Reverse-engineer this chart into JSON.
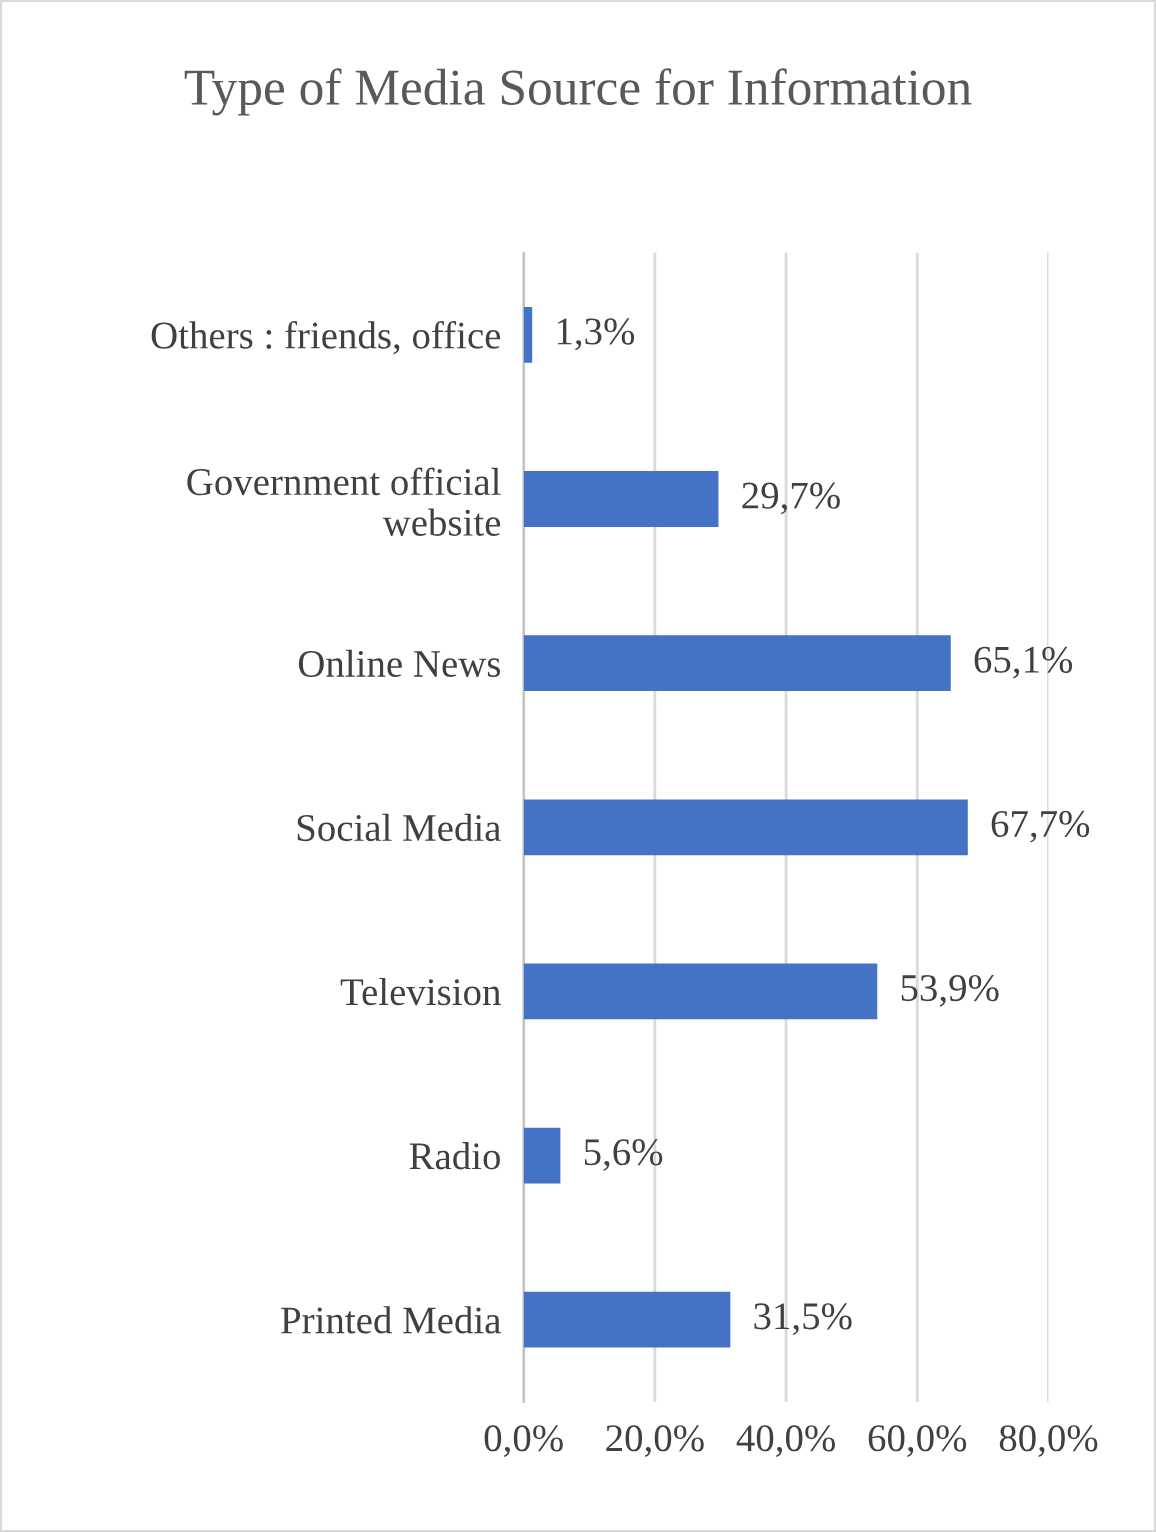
{
  "chart_data": {
    "type": "bar",
    "orientation": "horizontal",
    "title": "Type of Media Source for Information",
    "categories": [
      "Others : friends, office",
      "Government official\nwebsite",
      "Online News",
      "Social Media",
      "Television",
      "Radio",
      "Printed Media"
    ],
    "values": [
      1.3,
      29.7,
      65.1,
      67.7,
      53.9,
      5.6,
      31.5
    ],
    "value_labels": [
      "1,3%",
      "29,7%",
      "65,1%",
      "67,7%",
      "53,9%",
      "5,6%",
      "31,5%"
    ],
    "color": "#4472c4",
    "xlim": [
      0,
      80
    ],
    "xticks": [
      {
        "value": 0,
        "label": "0,0%"
      },
      {
        "value": 20,
        "label": "20,0%"
      },
      {
        "value": 40,
        "label": "40,0%"
      },
      {
        "value": 60,
        "label": "60,0%"
      },
      {
        "value": 80,
        "label": "80,0%"
      }
    ],
    "grid": "x",
    "legend": false
  }
}
